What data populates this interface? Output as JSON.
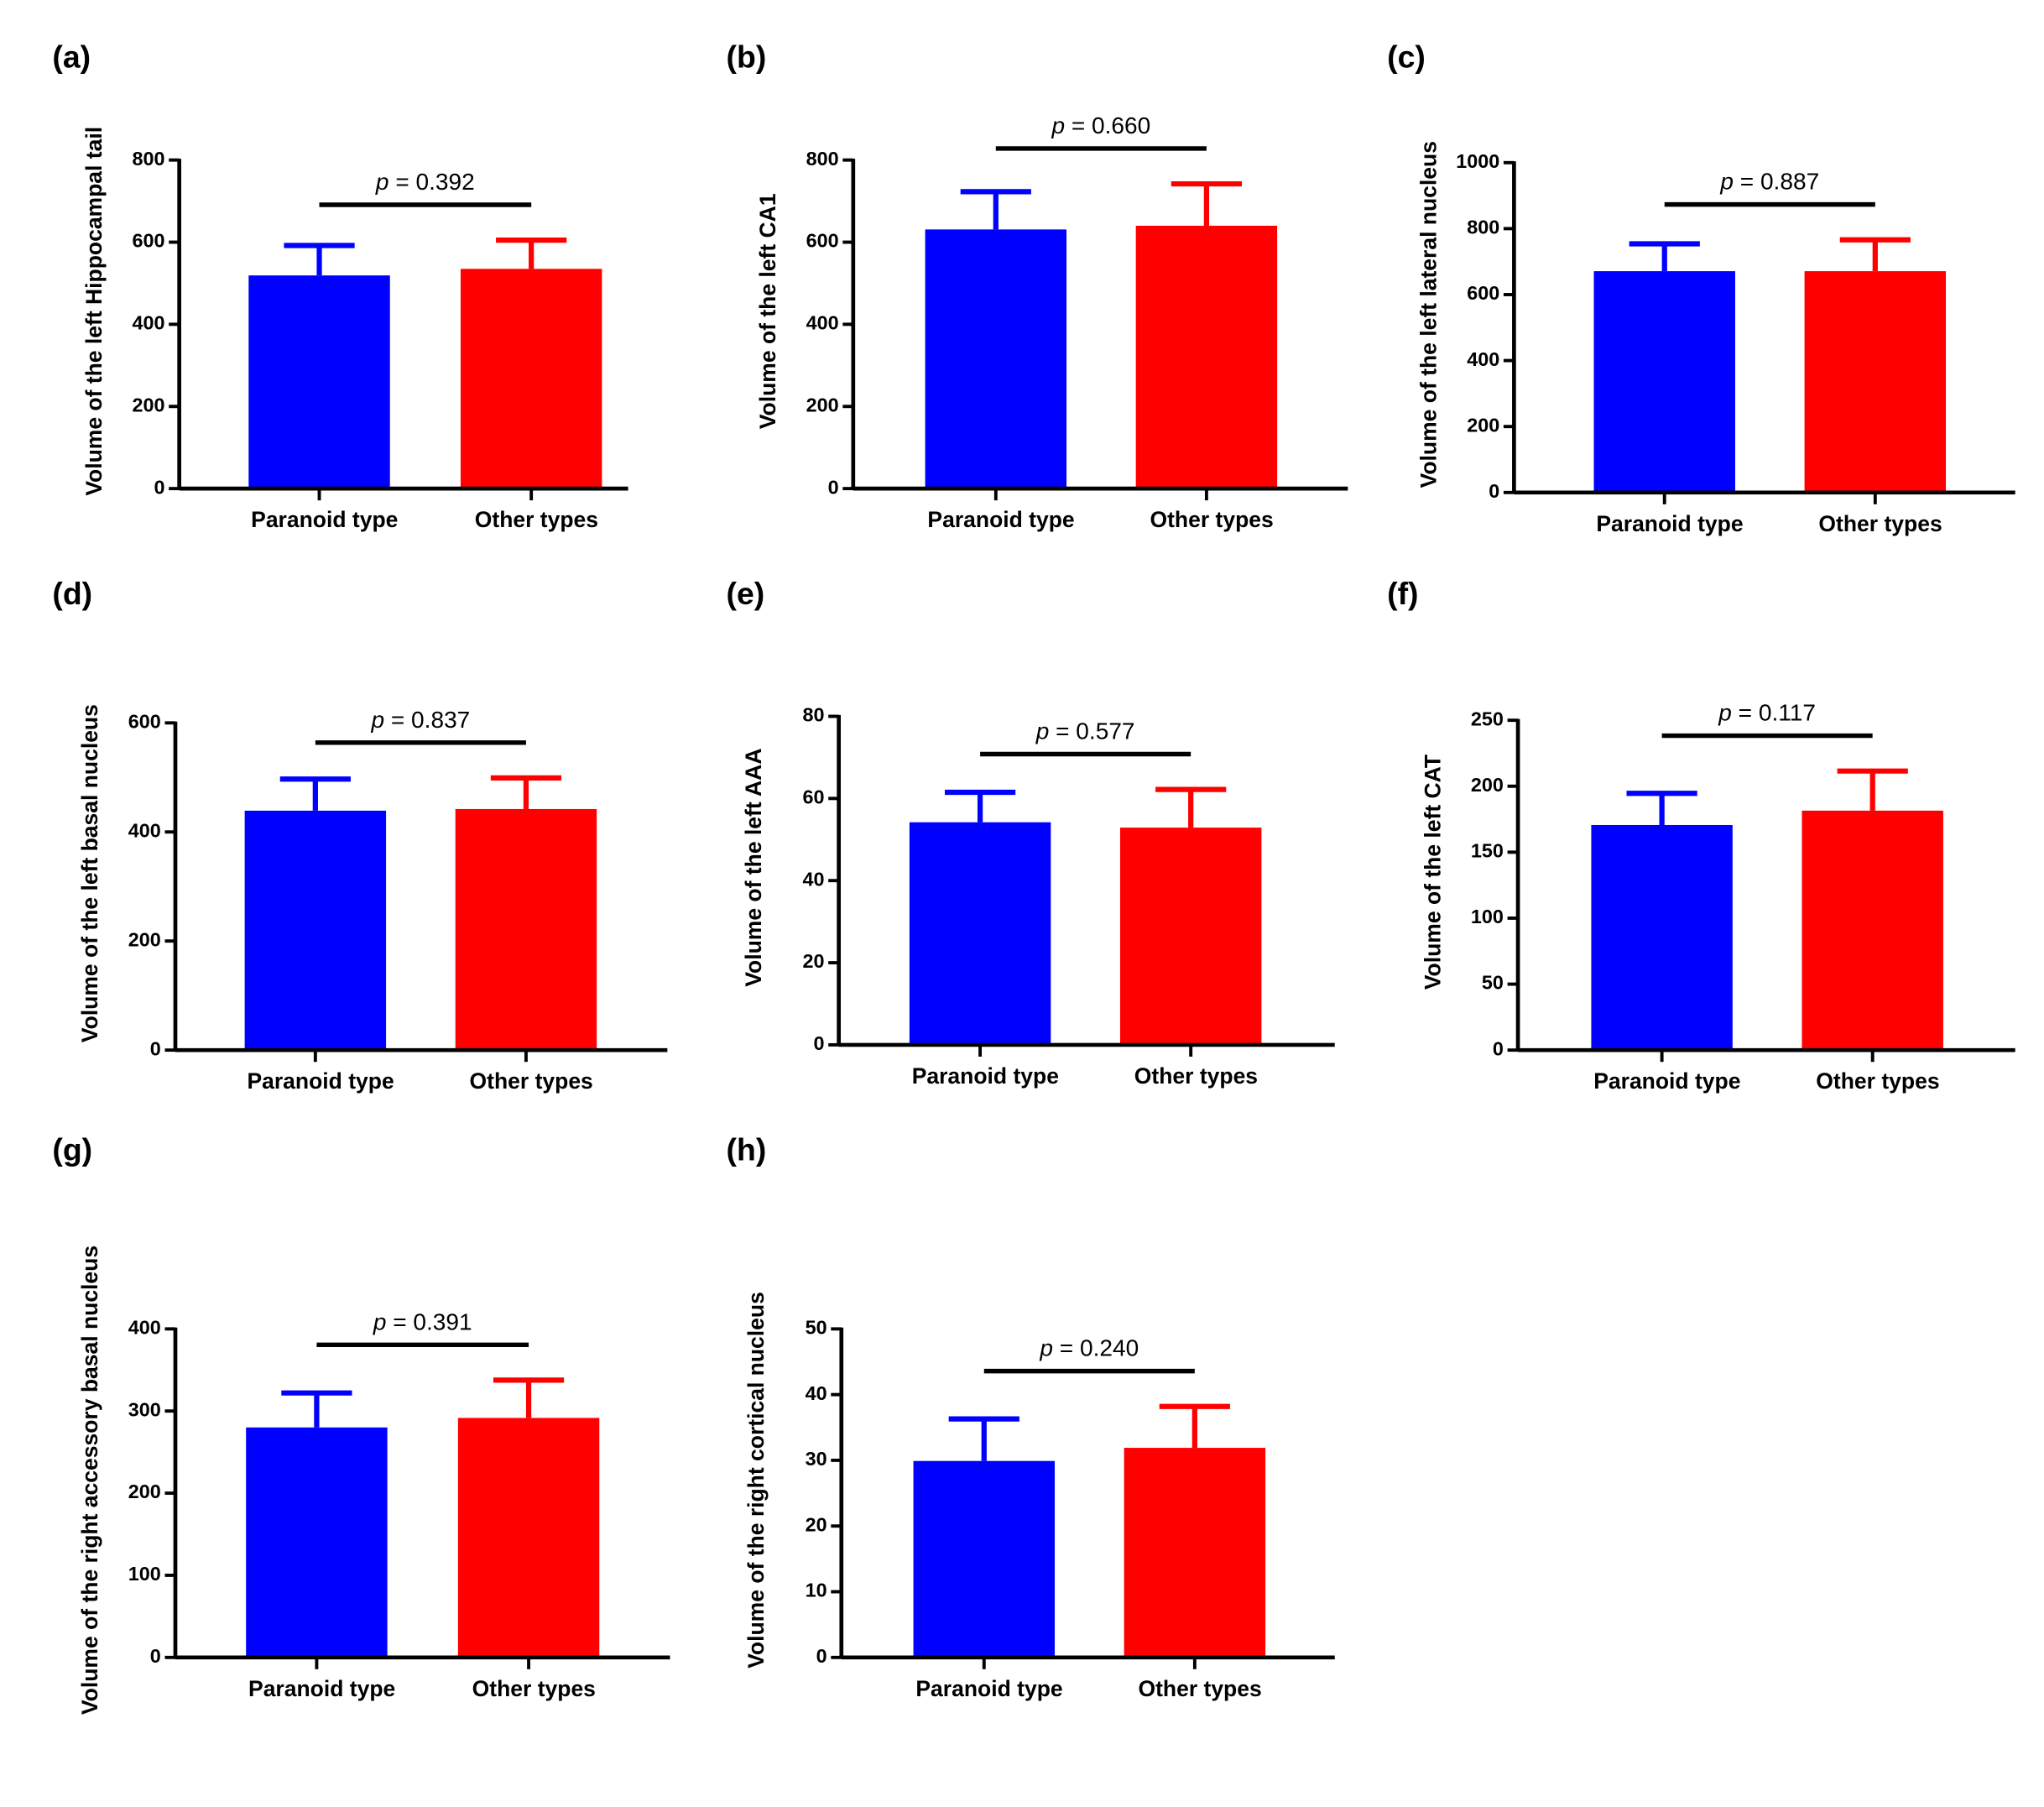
{
  "chart_data": [
    {
      "type": "bar",
      "panel": "(a)",
      "ylabel": "Volume of the left Hippocampal tail",
      "categories": [
        "Paranoid type",
        "Other types"
      ],
      "values": [
        519,
        535
      ],
      "errors": [
        73,
        70
      ],
      "colors": [
        "#0000ff",
        "#ff0000"
      ],
      "annotation": "p = 0.392",
      "ylim": [
        0,
        800
      ],
      "yticks": [
        0,
        200,
        400,
        600,
        800
      ]
    },
    {
      "type": "bar",
      "panel": "(b)",
      "ylabel": "Volume of the left CA1",
      "categories": [
        "Paranoid type",
        "Other types"
      ],
      "values": [
        631,
        640
      ],
      "errors": [
        92,
        102
      ],
      "colors": [
        "#0000ff",
        "#ff0000"
      ],
      "annotation": "p = 0.660",
      "ylim": [
        0,
        800
      ],
      "yticks": [
        0,
        200,
        400,
        600,
        800
      ]
    },
    {
      "type": "bar",
      "panel": "(c)",
      "ylabel": "Volume of the left lateral nucleus",
      "categories": [
        "Paranoid type",
        "Other types"
      ],
      "values": [
        671,
        671
      ],
      "errors": [
        83,
        95
      ],
      "colors": [
        "#0000ff",
        "#ff0000"
      ],
      "annotation": "p = 0.887",
      "ylim": [
        0,
        1000
      ],
      "yticks": [
        0,
        200,
        400,
        600,
        800,
        1000
      ]
    },
    {
      "type": "bar",
      "panel": "(d)",
      "ylabel": "Volume of the left basal nucleus",
      "categories": [
        "Paranoid type",
        "Other types"
      ],
      "values": [
        439,
        442
      ],
      "errors": [
        58,
        57
      ],
      "colors": [
        "#0000ff",
        "#ff0000"
      ],
      "annotation": "p = 0.837",
      "ylim": [
        0,
        600
      ],
      "yticks": [
        0,
        200,
        400,
        600
      ]
    },
    {
      "type": "bar",
      "panel": "(e)",
      "ylabel": "Volume of the left AAA",
      "categories": [
        "Paranoid type",
        "Other types"
      ],
      "values": [
        54.2,
        52.9
      ],
      "errors": [
        7.3,
        9.3
      ],
      "colors": [
        "#0000ff",
        "#ff0000"
      ],
      "annotation": "p = 0.577",
      "ylim": [
        0,
        80
      ],
      "yticks": [
        0,
        20,
        40,
        60,
        80
      ]
    },
    {
      "type": "bar",
      "panel": "(f)",
      "ylabel": "Volume of the left CAT",
      "categories": [
        "Paranoid type",
        "Other types"
      ],
      "values": [
        170.6,
        181.5
      ],
      "errors": [
        24,
        30
      ],
      "colors": [
        "#0000ff",
        "#ff0000"
      ],
      "annotation": "p = 0.117",
      "ylim": [
        0,
        250
      ],
      "yticks": [
        0,
        50,
        100,
        150,
        200,
        250
      ]
    },
    {
      "type": "bar",
      "panel": "(g)",
      "ylabel": "Volume of the right accessory basal nucleus",
      "categories": [
        "Paranoid type",
        "Other types"
      ],
      "values": [
        280,
        291.6
      ],
      "errors": [
        42,
        46
      ],
      "colors": [
        "#0000ff",
        "#ff0000"
      ],
      "annotation": "p = 0.391",
      "ylim": [
        0,
        400
      ],
      "yticks": [
        0,
        100,
        200,
        300,
        400
      ]
    },
    {
      "type": "bar",
      "panel": "(h)",
      "ylabel": "Volume of the right cortical nucleus",
      "categories": [
        "Paranoid type",
        "Other types"
      ],
      "values": [
        29.9,
        31.9
      ],
      "errors": [
        6.4,
        6.3
      ],
      "colors": [
        "#0000ff",
        "#ff0000"
      ],
      "annotation": "p = 0.240",
      "ylim": [
        0,
        50
      ],
      "yticks": [
        0,
        10,
        20,
        30,
        40,
        50
      ]
    }
  ]
}
